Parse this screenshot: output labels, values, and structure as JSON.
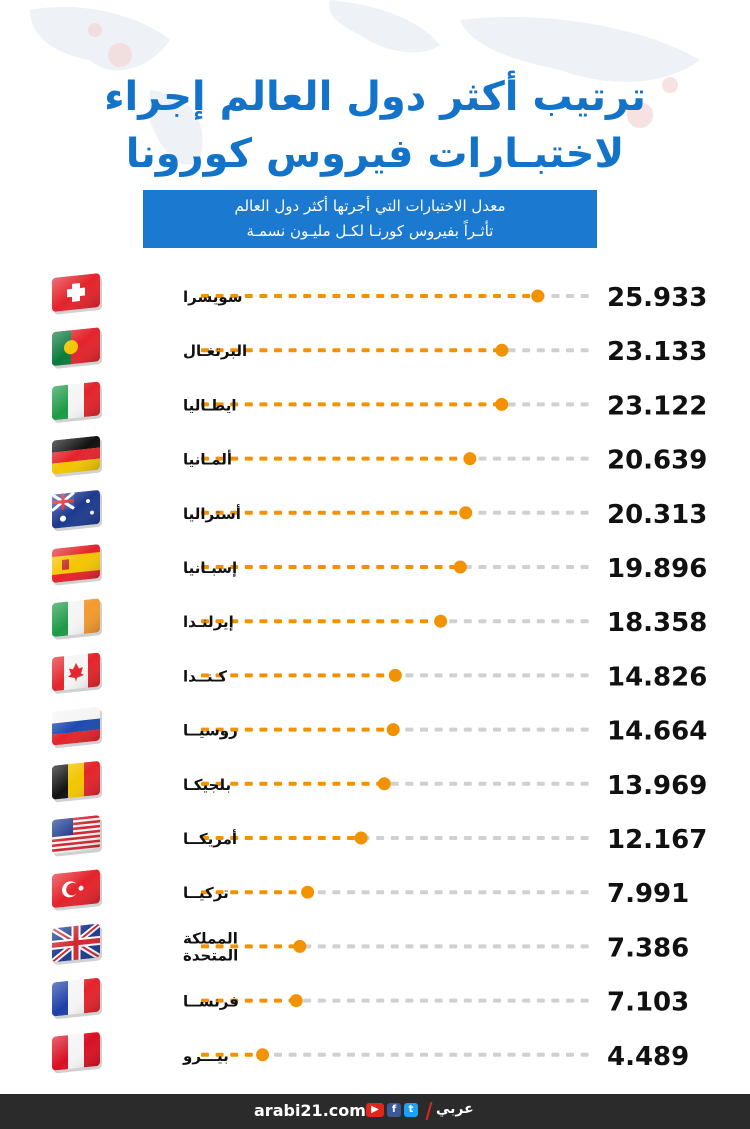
{
  "header": {
    "title_line1": "ترتيب أكثر دول العالم إجراء",
    "title_line2": "لاختبـارات فيروس كورونا",
    "subtitle_line1": "معدل الاختبارات التي أجرتها أكثر دول العالم",
    "subtitle_line2": "تأثـراً بفيروس كورنـا لكـل مليـون نسمـة"
  },
  "chart_data": {
    "type": "bar",
    "categories": [
      "سويسرا",
      "البرتغال",
      "ايطاليا",
      "ألمانيا",
      "أستراليا",
      "إسبانيا",
      "إيرلندا",
      "كندا",
      "روسيا",
      "بلجيكا",
      "أمريكا",
      "تركيا",
      "المملكة المتحدة",
      "فرنسا",
      "بيرو"
    ],
    "category_labels": [
      "سويسرا",
      "البرتغـال",
      "ايطـاليا",
      "ألمـانيا",
      "أستراليا",
      "إسبـانيا",
      "إيرلنـدا",
      "كـنــدا",
      "روسيــا",
      "بلجيكـا",
      "أمريكــا",
      "تركيــا",
      "المملكة المتحدة",
      "فرنســا",
      "بيـــرو"
    ],
    "value_labels": [
      "25.933",
      "23.133",
      "23.122",
      "20.639",
      "20.313",
      "19.896",
      "18.358",
      "14.826",
      "14.664",
      "13.969",
      "12.167",
      "7.991",
      "7.386",
      "7.103",
      "4.489"
    ],
    "values": [
      25.933,
      23.133,
      23.122,
      20.639,
      20.313,
      19.896,
      18.358,
      14.826,
      14.664,
      13.969,
      12.167,
      7.991,
      7.386,
      7.103,
      4.489
    ],
    "xlim": [
      0,
      30
    ],
    "flags": [
      "switzerland",
      "portugal",
      "italy",
      "germany",
      "australia",
      "spain",
      "ireland",
      "canada",
      "russia",
      "belgium",
      "usa",
      "turkey",
      "uk",
      "france",
      "peru"
    ],
    "colors": {
      "filled": "#f39200",
      "empty": "#d0d0d0",
      "text": "#111111"
    }
  },
  "footer": {
    "url": "arabi21.com",
    "logo": "عربي"
  },
  "colors": {
    "title": "#1273c8",
    "subtitle_bg": "#1b7ad0",
    "footer_bg": "#2b2b2b"
  }
}
